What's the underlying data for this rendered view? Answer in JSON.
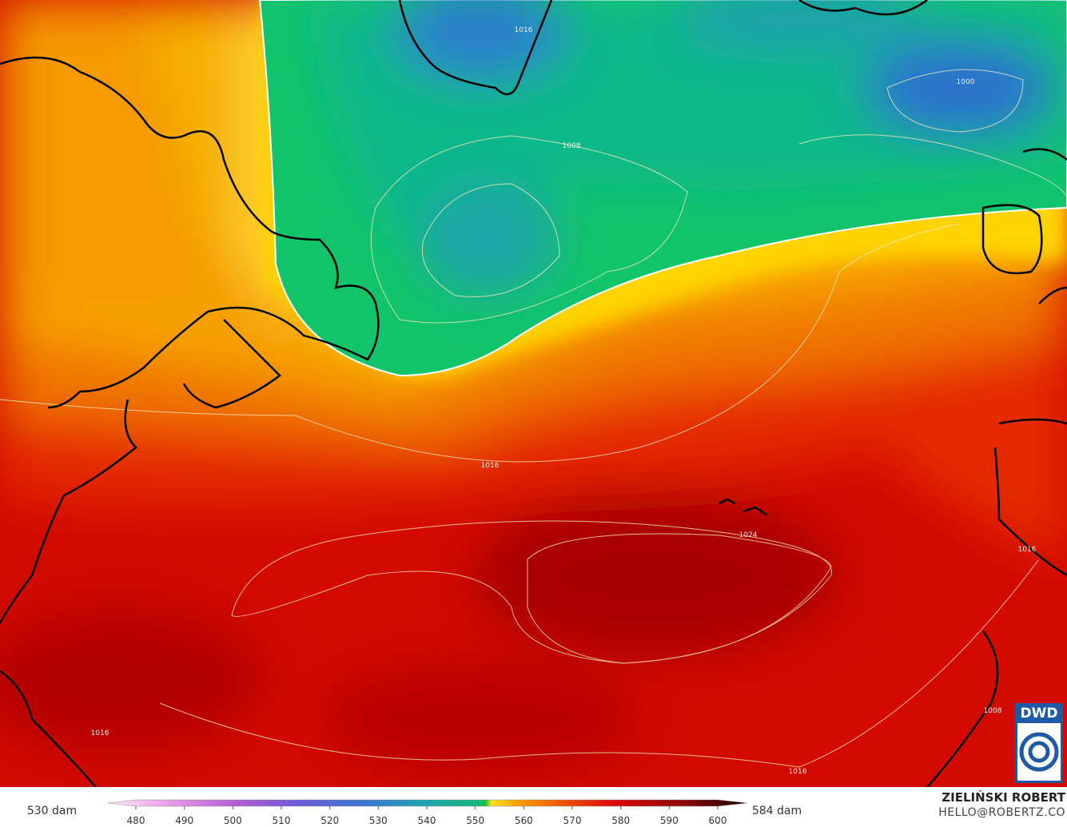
{
  "legend": {
    "min_label": "530 dam",
    "max_label": "584 dam",
    "ticks": [
      480,
      490,
      500,
      510,
      520,
      530,
      540,
      550,
      560,
      570,
      580,
      590,
      600
    ]
  },
  "contour_labels": [
    "1016",
    "1008",
    "1000",
    "1016",
    "1024",
    "1016",
    "1008",
    "1016",
    "1016"
  ],
  "logo": "DWD",
  "credit": {
    "name": "ZIELIŃSKI ROBERT",
    "email": "HELLO@ROBERTZ.CO"
  }
}
